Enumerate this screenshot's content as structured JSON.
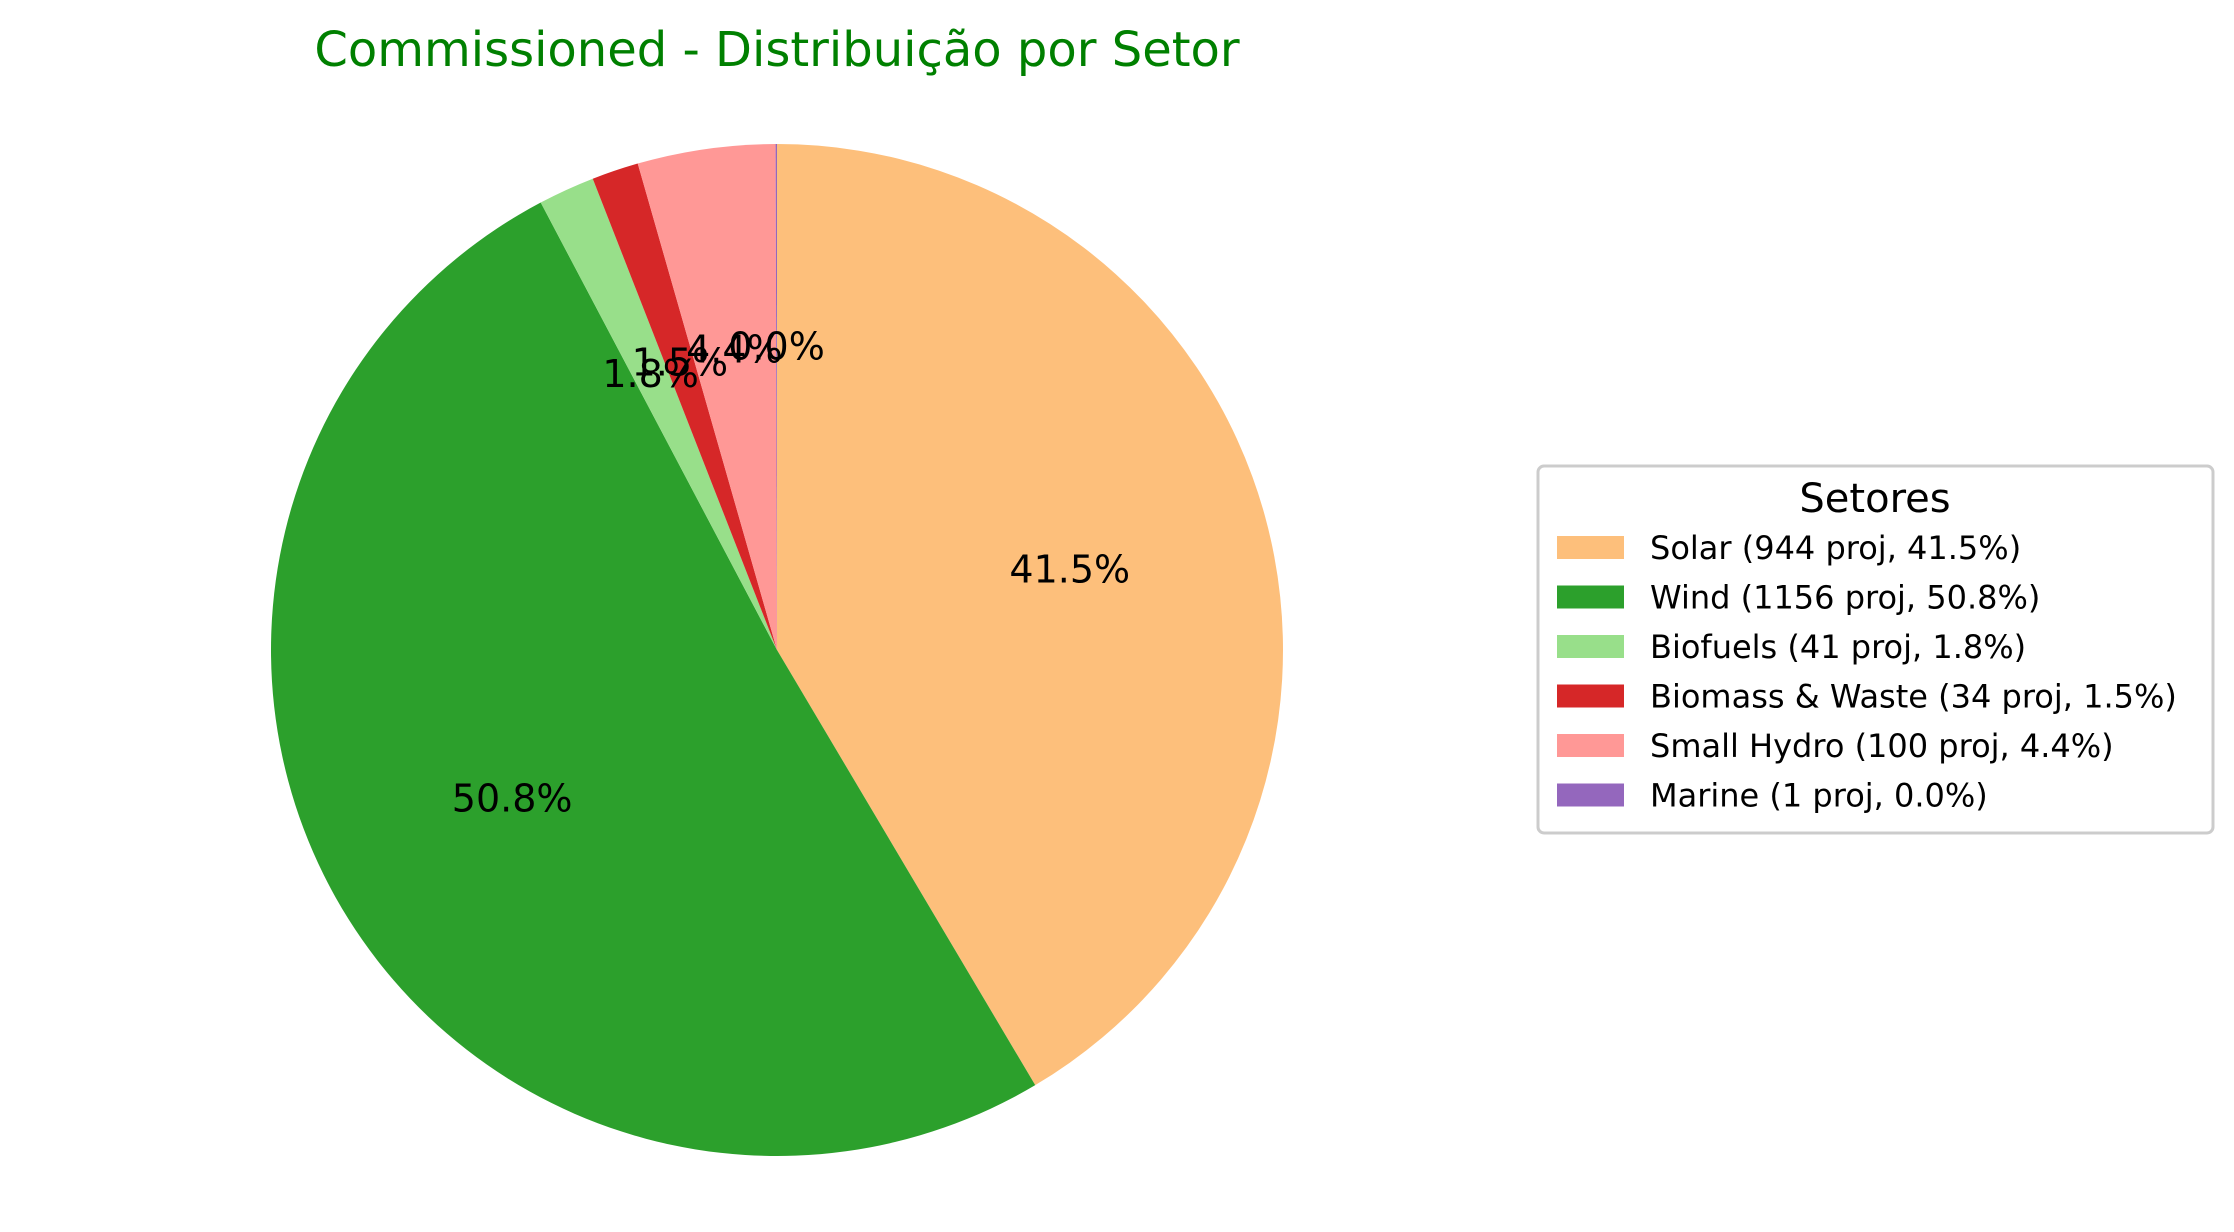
{
  "chart_data": {
    "type": "pie",
    "title": "Commissioned - Distribuição por Setor",
    "title_color": "#008000",
    "start_angle_deg": 90,
    "direction": "clockwise",
    "slices": [
      {
        "name": "Solar",
        "projects": 944,
        "percent": 41.5,
        "label": "41.5%",
        "color": "#fdbf7b",
        "legend": "Solar (944 proj, 41.5%)"
      },
      {
        "name": "Wind",
        "projects": 1156,
        "percent": 50.8,
        "label": "50.8%",
        "color": "#2ca02c",
        "legend": "Wind (1156 proj, 50.8%)"
      },
      {
        "name": "Biofuels",
        "projects": 41,
        "percent": 1.8,
        "label": "1.8%",
        "color": "#98df8a",
        "legend": "Biofuels (41 proj, 1.8%)"
      },
      {
        "name": "Biomass & Waste",
        "projects": 34,
        "percent": 1.5,
        "label": "1.5%",
        "color": "#d62728",
        "legend": "Biomass & Waste (34 proj, 1.5%)"
      },
      {
        "name": "Small Hydro",
        "projects": 100,
        "percent": 4.4,
        "label": "4.4%",
        "color": "#ff9896",
        "legend": "Small Hydro (100 proj, 4.4%)"
      },
      {
        "name": "Marine",
        "projects": 1,
        "percent": 0.0,
        "label": "0.0%",
        "color": "#9467bd",
        "legend": "Marine (1 proj, 0.0%)"
      }
    ],
    "legend": {
      "title": "Setores",
      "placement": "right"
    }
  }
}
